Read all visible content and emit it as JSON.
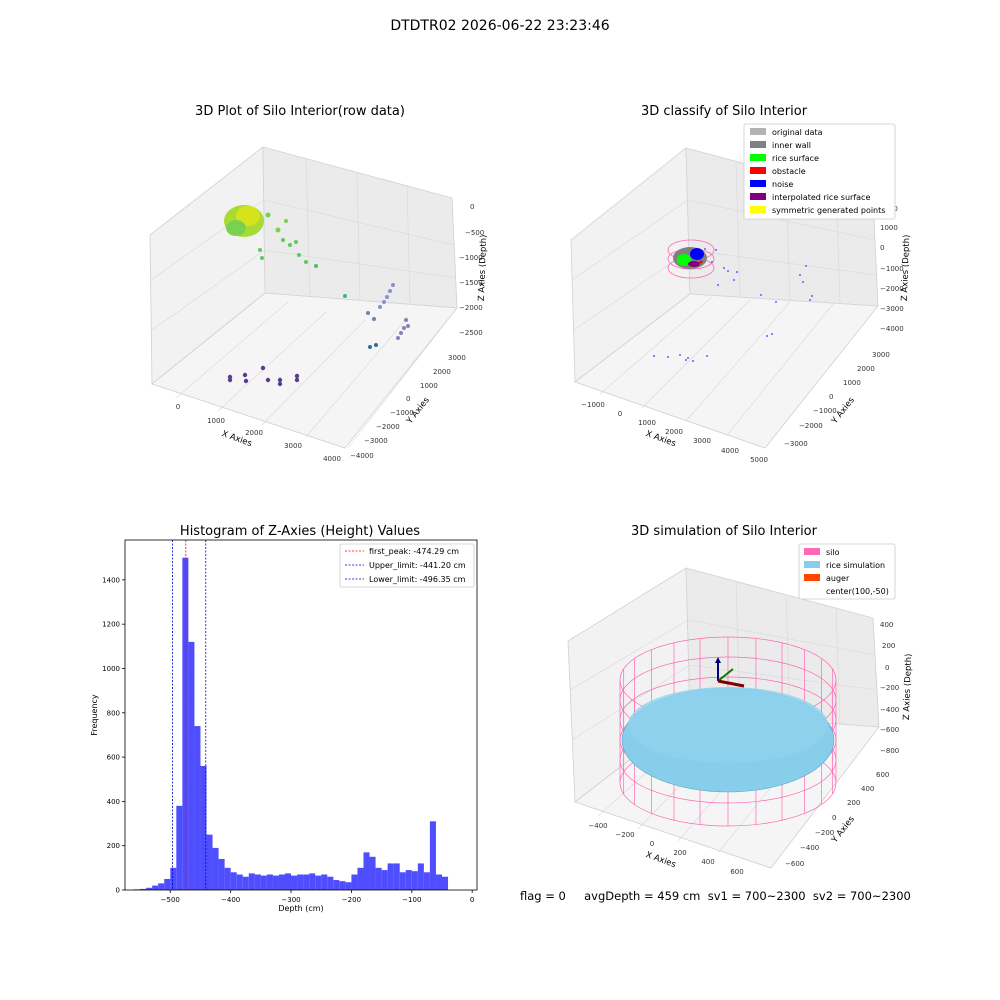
{
  "suptitle": "DTDTR02 2026-06-22 23:23:46",
  "footer": "flag = 0     avgDepth = 459 cm  sv1 = 700~2300  sv2 = 700~2300",
  "chart_data": [
    {
      "type": "scatter3d",
      "title": "3D Plot of Silo Interior(row data)",
      "xlabel": "X Axies",
      "ylabel": "Y Axies",
      "zlabel": "Z Axies (Depth)",
      "xticks": [
        "0",
        "1000",
        "2000",
        "3000",
        "4000"
      ],
      "yticks": [
        "3000",
        "2000",
        "1000",
        "0",
        "−1000",
        "−2000",
        "−3000",
        "−4000"
      ],
      "zticks": [
        "0",
        "−500",
        "−1000",
        "−1500",
        "−2000",
        "−2500"
      ],
      "colormap": "viridis"
    },
    {
      "type": "scatter3d",
      "title": "3D classify of Silo Interior",
      "xlabel": "X Axies",
      "ylabel": "Y Axies",
      "zlabel": "Z Axies (Depth)",
      "xticks": [
        "−1000",
        "0",
        "1000",
        "2000",
        "3000",
        "4000",
        "5000"
      ],
      "yticks": [
        "3000",
        "2000",
        "1000",
        "0",
        "−1000",
        "−2000",
        "−3000"
      ],
      "zticks": [
        "2000",
        "1000",
        "0",
        "−1000",
        "−2000",
        "−3000",
        "−4000"
      ],
      "legend": [
        {
          "label": "original data",
          "color": "#b3b3b3"
        },
        {
          "label": "inner wall",
          "color": "#808080"
        },
        {
          "label": "rice surface",
          "color": "#00ff00"
        },
        {
          "label": "obstacle",
          "color": "#ff0000"
        },
        {
          "label": "noise",
          "color": "#0000ff"
        },
        {
          "label": "interpolated rice surface",
          "color": "#800080"
        },
        {
          "label": "symmetric generated points",
          "color": "#ffff00"
        }
      ]
    },
    {
      "type": "bar",
      "title": "Histogram of Z-Axies (Height) Values",
      "xlabel": "Depth (cm)",
      "ylabel": "Frequency",
      "xlim": [
        -575,
        8
      ],
      "ylim": [
        0,
        1580
      ],
      "xticks": [
        -500,
        -400,
        -300,
        -200,
        -100,
        0
      ],
      "yticks": [
        0,
        200,
        400,
        600,
        800,
        1000,
        1200,
        1400
      ],
      "bin_start": -560,
      "bin_width": 10,
      "values": [
        3,
        5,
        10,
        20,
        30,
        50,
        100,
        380,
        1500,
        1120,
        740,
        560,
        250,
        190,
        140,
        100,
        80,
        70,
        60,
        75,
        70,
        65,
        70,
        65,
        70,
        75,
        65,
        70,
        70,
        75,
        65,
        70,
        60,
        45,
        40,
        35,
        70,
        100,
        170,
        150,
        100,
        90,
        120,
        120,
        80,
        90,
        85,
        120,
        80,
        310,
        70,
        60
      ],
      "bar_color": "#4444ff",
      "vlines": [
        {
          "label": "first_peak: -474.29 cm",
          "x": -474.29,
          "color": "#ff0000"
        },
        {
          "label": "Upper_limit: -441.20 cm",
          "x": -441.2,
          "color": "#0000cc"
        },
        {
          "label": "Lower_limit: -496.35 cm",
          "x": -496.35,
          "color": "#0000cc"
        }
      ],
      "legend_position": "upper right"
    },
    {
      "type": "surface3d",
      "title": "3D simulation of Silo Interior",
      "xlabel": "X Axies",
      "ylabel": "Y Axies",
      "zlabel": "Z Axies (Depth)",
      "xticks": [
        "−400",
        "−200",
        "0",
        "200",
        "400",
        "600"
      ],
      "yticks": [
        "600",
        "400",
        "200",
        "0",
        "−200",
        "−400",
        "−600"
      ],
      "zticks": [
        "400",
        "200",
        "0",
        "−200",
        "−400",
        "−600",
        "−800"
      ],
      "legend": [
        {
          "label": "silo",
          "color": "#ff69b4"
        },
        {
          "label": "rice simulation",
          "color": "#87ceeb"
        },
        {
          "label": "auger",
          "color": "#ff4500"
        },
        {
          "label": "center(100,-50)",
          "color": ""
        }
      ]
    }
  ]
}
